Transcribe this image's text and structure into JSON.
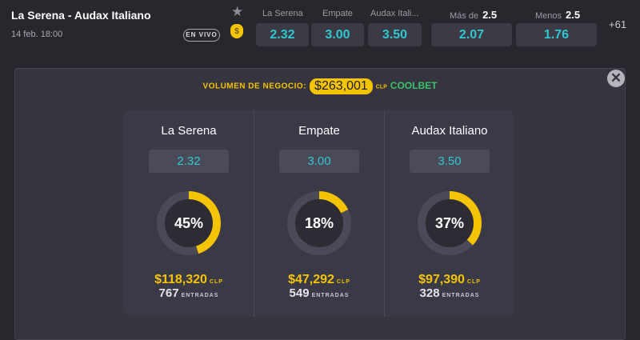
{
  "match": {
    "title": "La Serena - Audax Italiano",
    "date": "14 feb. 18:00",
    "live": "EN VIVO",
    "more": "+61"
  },
  "market": {
    "home_label": "La Serena",
    "draw_label": "Empate",
    "away_label": "Audax Itali...",
    "home": "2.32",
    "draw": "3.00",
    "away": "3.50",
    "over_label": "Más de",
    "over_line": "2.5",
    "over": "2.07",
    "under_label": "Menos",
    "under_line": "2.5",
    "under": "1.76"
  },
  "volume": {
    "label": "VOLUMEN DE NEGOCIO:",
    "amount": "$263,001",
    "currency": "CLP",
    "brand": "COOLBET"
  },
  "outcomes": [
    {
      "name": "La Serena",
      "odds": "2.32",
      "percent": 45,
      "percent_label": "45%",
      "amount": "$118,320",
      "currency": "CLP",
      "entries": "767",
      "entries_label": "ENTRADAS"
    },
    {
      "name": "Empate",
      "odds": "3.00",
      "percent": 18,
      "percent_label": "18%",
      "amount": "$47,292",
      "currency": "CLP",
      "entries": "549",
      "entries_label": "ENTRADAS"
    },
    {
      "name": "Audax Italiano",
      "odds": "3.50",
      "percent": 37,
      "percent_label": "37%",
      "amount": "$97,390",
      "currency": "CLP",
      "entries": "328",
      "entries_label": "ENTRADAS"
    }
  ],
  "colors": {
    "accent": "#f5c400",
    "odds": "#2fc7d1"
  }
}
